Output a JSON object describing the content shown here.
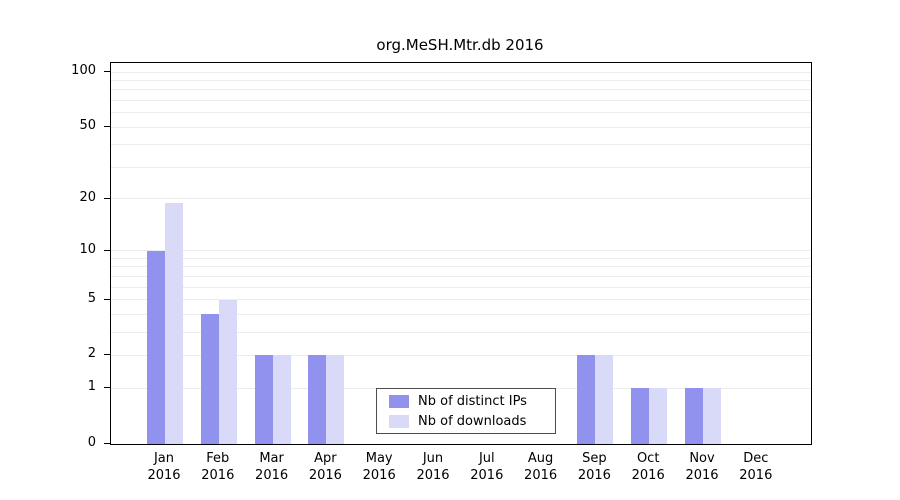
{
  "figure": {
    "title": "org.MeSH.Mtr.db 2016"
  },
  "chart_data": {
    "type": "bar",
    "title": "org.MeSH.Mtr.db 2016",
    "year_label": "2016",
    "months": [
      "Jan",
      "Feb",
      "Mar",
      "Apr",
      "May",
      "Jun",
      "Jul",
      "Aug",
      "Sep",
      "Oct",
      "Nov",
      "Dec"
    ],
    "series": [
      {
        "name": "Nb of distinct IPs",
        "color": "#9192ee",
        "values": [
          10,
          4,
          2,
          2,
          0,
          0,
          0,
          0,
          2,
          1,
          1,
          0
        ]
      },
      {
        "name": "Nb of downloads",
        "color": "#d9d9f8",
        "values": [
          19,
          5,
          2,
          2,
          0,
          0,
          0,
          0,
          2,
          1,
          1,
          0
        ]
      }
    ],
    "y_ticks": [
      0,
      1,
      2,
      5,
      10,
      20,
      50,
      100
    ],
    "gridlines": [
      1,
      2,
      3,
      4,
      5,
      6,
      7,
      8,
      9,
      10,
      20,
      30,
      40,
      50,
      60,
      70,
      80,
      90,
      100
    ],
    "scale": "log1p",
    "ylim": [
      0,
      100
    ],
    "grid": true,
    "legend_position": "bottom-center-inside",
    "xlabel": "",
    "ylabel": ""
  }
}
